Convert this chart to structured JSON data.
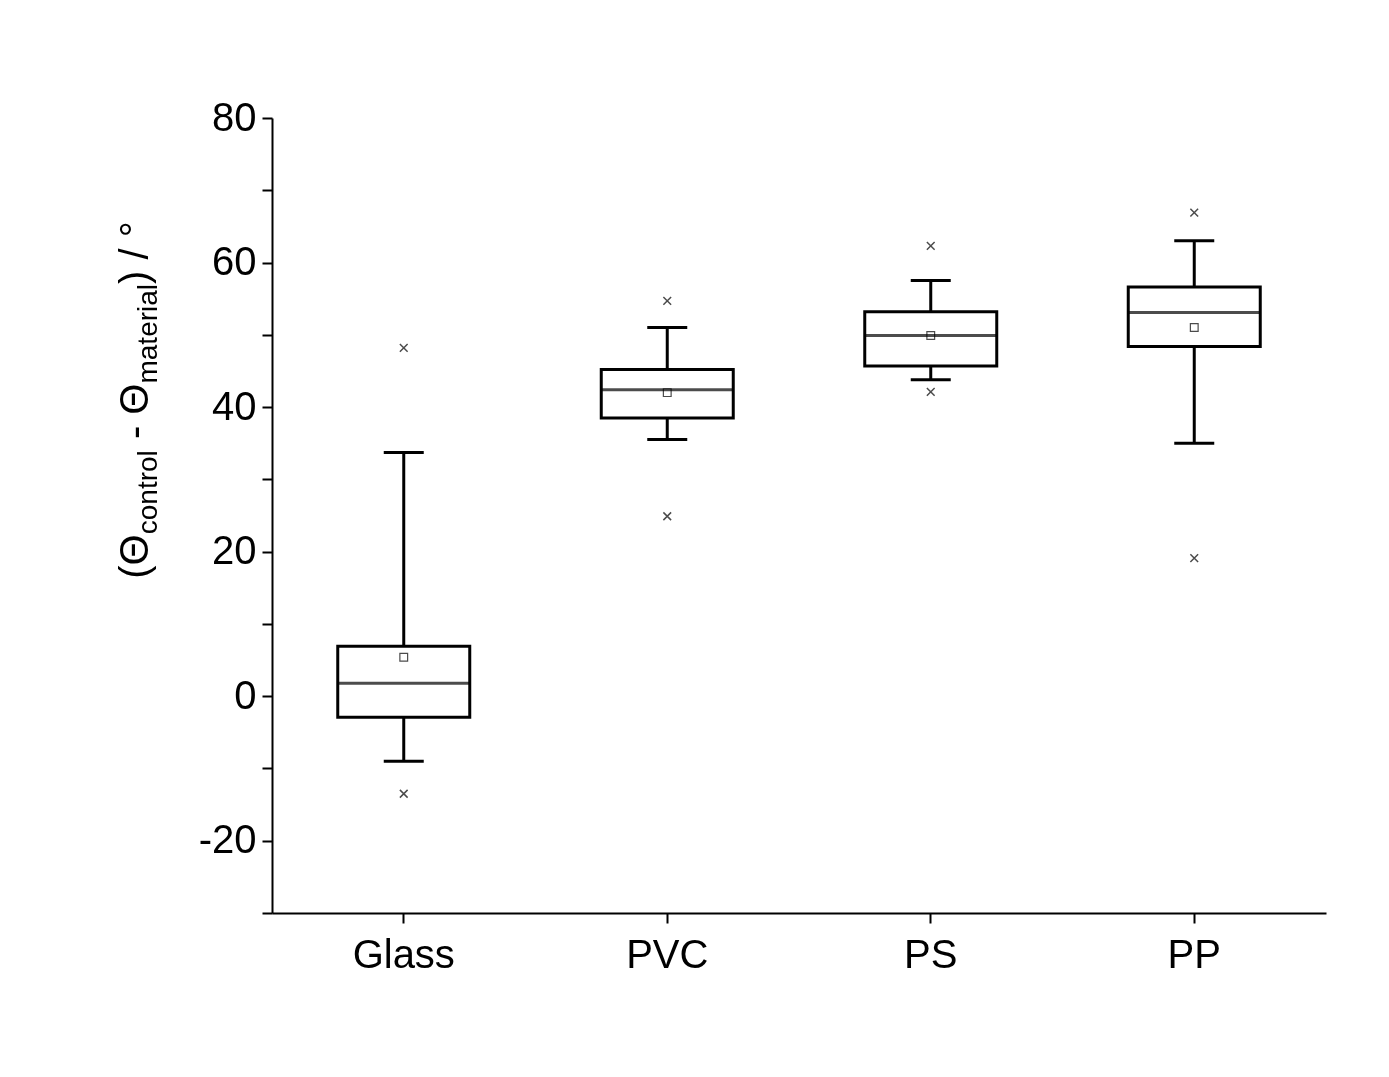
{
  "chart_data": {
    "type": "box",
    "ylabel": "(Θ$_{control}$ - Θ$_{material}$) / °",
    "categories": [
      "Glass",
      "PVC",
      "PS",
      "PP"
    ],
    "boxes": [
      {
        "low": -9.0,
        "q1": -2.9,
        "median": 1.8,
        "q3": 6.9,
        "high": 33.7,
        "mean": 5.4,
        "outliers": [
          48.2,
          -13.5
        ]
      },
      {
        "low": 35.5,
        "q1": 38.5,
        "median": 42.4,
        "q3": 45.2,
        "high": 51.0,
        "mean": 42.0,
        "outliers": [
          54.7,
          24.9
        ]
      },
      {
        "low": 43.8,
        "q1": 45.7,
        "median": 49.9,
        "q3": 53.2,
        "high": 57.5,
        "mean": 49.9,
        "outliers": [
          62.3,
          42.1
        ]
      },
      {
        "low": 35.0,
        "q1": 48.4,
        "median": 53.1,
        "q3": 56.6,
        "high": 63.0,
        "mean": 51.0,
        "outliers": [
          66.9,
          19.1
        ]
      }
    ],
    "ylim": [
      -30,
      80
    ],
    "yticks": [
      {
        "value": -30,
        "label": null
      },
      -20,
      {
        "value": -10,
        "label": null
      },
      0,
      {
        "value": 10,
        "label": null
      },
      20,
      {
        "value": 30,
        "label": null
      },
      40,
      {
        "value": 50,
        "label": null
      },
      60,
      {
        "value": 70,
        "label": null
      },
      80
    ],
    "grid": false
  }
}
